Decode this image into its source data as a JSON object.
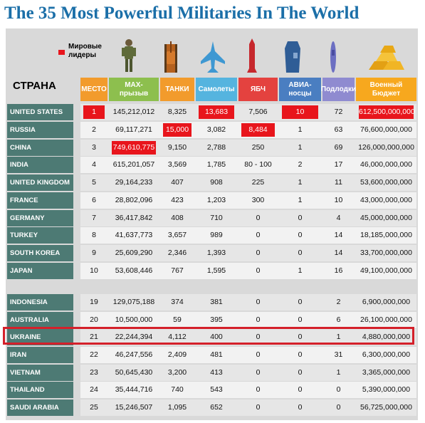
{
  "title": "The 35 Most Powerful Militaries In The World",
  "legend": {
    "label": "Мировые лидеры",
    "color": "#e8151c"
  },
  "icons": [
    "soldier-icon",
    "tank-icon",
    "fighter-jet-icon",
    "missile-icon",
    "aircraft-carrier-icon",
    "submarine-icon",
    "gold-bars-icon"
  ],
  "chart_data": {
    "type": "table",
    "corner_label": "СТРАНА",
    "columns": [
      {
        "label": "МЕСТО",
        "color": "#f29b2c"
      },
      {
        "label": "MAX-\nпрызыв",
        "color": "#8dbf4e"
      },
      {
        "label": "ТАНКИ",
        "color": "#f29b2c"
      },
      {
        "label": "Самолеты",
        "color": "#55b4df"
      },
      {
        "label": "ЯБЧ",
        "color": "#e4423f"
      },
      {
        "label": "АВИА-\nносцы",
        "color": "#4a7ec1"
      },
      {
        "label": "Подлодки",
        "color": "#8f8bd0"
      },
      {
        "label": "Военный\nБюджет",
        "color": "#f7a81e"
      }
    ],
    "rows": [
      {
        "country": "UNITED STATES",
        "values": [
          "1",
          "145,212,012",
          "8,325",
          "13,683",
          "7,506",
          "10",
          "72",
          "612,500,000,000"
        ],
        "leaders": [
          0,
          3,
          5,
          7
        ]
      },
      {
        "country": "RUSSIA",
        "values": [
          "2",
          "69,117,271",
          "15,000",
          "3,082",
          "8,484",
          "1",
          "63",
          "76,600,000,000"
        ],
        "leaders": [
          2,
          4
        ]
      },
      {
        "country": "CHINA",
        "values": [
          "3",
          "749,610,775",
          "9,150",
          "2,788",
          "250",
          "1",
          "69",
          "126,000,000,000"
        ],
        "leaders": [
          1
        ]
      },
      {
        "country": "INDIA",
        "values": [
          "4",
          "615,201,057",
          "3,569",
          "1,785",
          "80 - 100",
          "2",
          "17",
          "46,000,000,000"
        ],
        "leaders": []
      },
      {
        "country": "UNITED KINGDOM",
        "values": [
          "5",
          "29,164,233",
          "407",
          "908",
          "225",
          "1",
          "11",
          "53,600,000,000"
        ],
        "leaders": []
      },
      {
        "country": "FRANCE",
        "values": [
          "6",
          "28,802,096",
          "423",
          "1,203",
          "300",
          "1",
          "10",
          "43,000,000,000"
        ],
        "leaders": []
      },
      {
        "country": "GERMANY",
        "values": [
          "7",
          "36,417,842",
          "408",
          "710",
          "0",
          "0",
          "4",
          "45,000,000,000"
        ],
        "leaders": []
      },
      {
        "country": "TURKEY",
        "values": [
          "8",
          "41,637,773",
          "3,657",
          "989",
          "0",
          "0",
          "14",
          "18,185,000,000"
        ],
        "leaders": []
      },
      {
        "country": "SOUTH KOREA",
        "values": [
          "9",
          "25,609,290",
          "2,346",
          "1,393",
          "0",
          "0",
          "14",
          "33,700,000,000"
        ],
        "leaders": []
      },
      {
        "country": "JAPAN",
        "values": [
          "10",
          "53,608,446",
          "767",
          "1,595",
          "0",
          "1",
          "16",
          "49,100,000,000"
        ],
        "leaders": []
      },
      {
        "country": "INDONESIA",
        "values": [
          "19",
          "129,075,188",
          "374",
          "381",
          "0",
          "0",
          "2",
          "6,900,000,000"
        ],
        "leaders": []
      },
      {
        "country": "AUSTRALIA",
        "values": [
          "20",
          "10,500,000",
          "59",
          "395",
          "0",
          "0",
          "6",
          "26,100,000,000"
        ],
        "leaders": []
      },
      {
        "country": "UKRAINE",
        "values": [
          "21",
          "22,244,394",
          "4,112",
          "400",
          "0",
          "0",
          "1",
          "4,880,000,000"
        ],
        "leaders": [],
        "highlighted": true
      },
      {
        "country": "IRAN",
        "values": [
          "22",
          "46,247,556",
          "2,409",
          "481",
          "0",
          "0",
          "31",
          "6,300,000,000"
        ],
        "leaders": []
      },
      {
        "country": "VIETNAM",
        "values": [
          "23",
          "50,645,430",
          "3,200",
          "413",
          "0",
          "0",
          "1",
          "3,365,000,000"
        ],
        "leaders": []
      },
      {
        "country": "THAILAND",
        "values": [
          "24",
          "35,444,716",
          "740",
          "543",
          "0",
          "0",
          "0",
          "5,390,000,000"
        ],
        "leaders": []
      },
      {
        "country": "SAUDI ARABIA",
        "values": [
          "25",
          "15,246,507",
          "1,095",
          "652",
          "0",
          "0",
          "0",
          "56,725,000,000"
        ],
        "leaders": []
      }
    ]
  }
}
